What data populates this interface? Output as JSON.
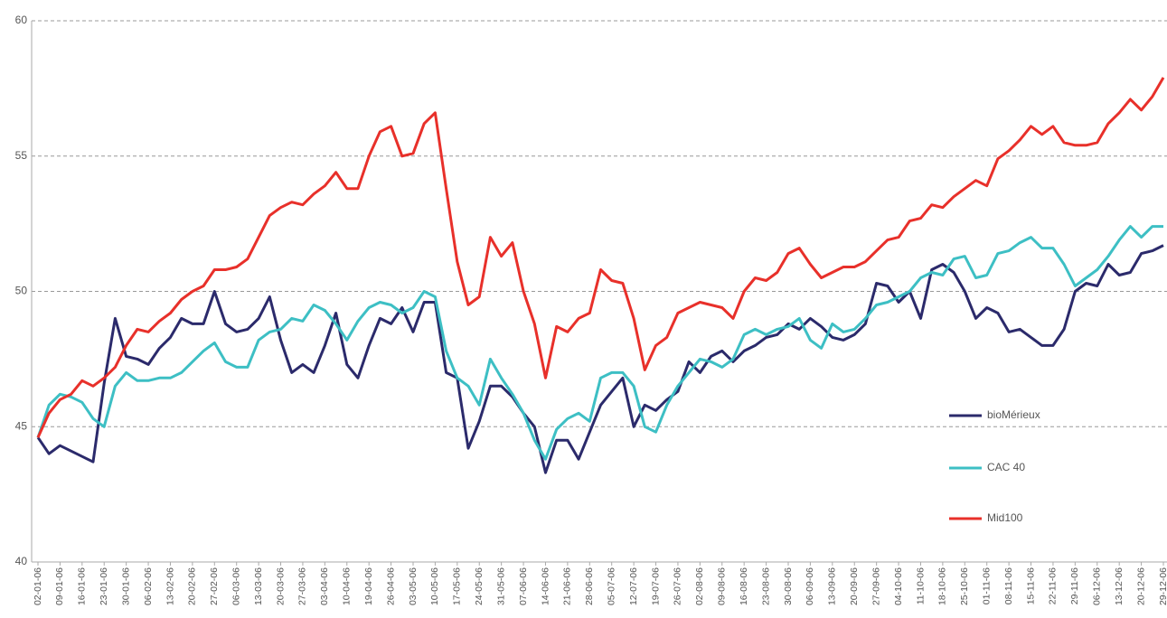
{
  "chart_data": {
    "type": "line",
    "categories": [
      "02-01-06",
      null,
      "09-01-06",
      null,
      "16-01-06",
      null,
      "23-01-06",
      null,
      "30-01-06",
      null,
      "06-02-06",
      null,
      "13-02-06",
      null,
      "20-02-06",
      null,
      "27-02-06",
      null,
      "06-03-06",
      null,
      "13-03-06",
      null,
      "20-03-06",
      null,
      "27-03-06",
      null,
      "03-04-06",
      null,
      "10-04-06",
      null,
      "19-04-06",
      null,
      "26-04-06",
      null,
      "03-05-06",
      null,
      "10-05-06",
      null,
      "17-05-06",
      null,
      "24-05-06",
      null,
      "31-05-06",
      null,
      "07-06-06",
      null,
      "14-06-06",
      null,
      "21-06-06",
      null,
      "28-06-06",
      null,
      "05-07-06",
      null,
      "12-07-06",
      null,
      "19-07-06",
      null,
      "26-07-06",
      null,
      "02-08-06",
      null,
      "09-08-06",
      null,
      "16-08-06",
      null,
      "23-08-06",
      null,
      "30-08-06",
      null,
      "06-09-06",
      null,
      "13-09-06",
      null,
      "20-09-06",
      null,
      "27-09-06",
      null,
      "04-10-06",
      null,
      "11-10-06",
      null,
      "18-10-06",
      null,
      "25-10-06",
      null,
      "01-11-06",
      null,
      "08-11-06",
      null,
      "15-11-06",
      null,
      "22-11-06",
      null,
      "29-11-06",
      null,
      "06-12-06",
      null,
      "13-12-06",
      null,
      "20-12-06",
      null,
      "29-12-06"
    ],
    "series": [
      {
        "name": "bioMérieux",
        "color": "#2b2a6b",
        "values": [
          44.6,
          44.0,
          44.3,
          44.1,
          43.9,
          43.7,
          46.6,
          49.0,
          47.6,
          47.5,
          47.3,
          47.9,
          48.3,
          49.0,
          48.8,
          48.8,
          50.0,
          48.8,
          48.5,
          48.6,
          49.0,
          49.8,
          48.2,
          47.0,
          47.3,
          47.0,
          48.0,
          49.2,
          47.3,
          46.8,
          48.0,
          49.0,
          48.8,
          49.4,
          48.5,
          49.6,
          49.6,
          47.0,
          46.8,
          44.2,
          45.2,
          46.5,
          46.5,
          46.1,
          45.5,
          45.0,
          43.3,
          44.5,
          44.5,
          43.8,
          44.8,
          45.8,
          46.3,
          46.8,
          45.0,
          45.8,
          45.6,
          46.0,
          46.3,
          47.4,
          47.0,
          47.6,
          47.8,
          47.4,
          47.8,
          48.0,
          48.3,
          48.4,
          48.8,
          48.6,
          49.0,
          48.7,
          48.3,
          48.2,
          48.4,
          48.8,
          50.3,
          50.2,
          49.6,
          50.0,
          49.0,
          50.8,
          51.0,
          50.7,
          50.0,
          49.0,
          49.4,
          49.2,
          48.5,
          48.6,
          48.3,
          48.0,
          48.0,
          48.6,
          50.0,
          50.3,
          50.2,
          51.0,
          50.6,
          50.7,
          51.4,
          51.5,
          51.7
        ]
      },
      {
        "name": "CAC 40",
        "color": "#3dbfc4",
        "values": [
          44.6,
          45.8,
          46.2,
          46.1,
          45.9,
          45.3,
          45.0,
          46.5,
          47.0,
          46.7,
          46.7,
          46.8,
          46.8,
          47.0,
          47.4,
          47.8,
          48.1,
          47.4,
          47.2,
          47.2,
          48.2,
          48.5,
          48.6,
          49.0,
          48.9,
          49.5,
          49.3,
          48.8,
          48.2,
          48.9,
          49.4,
          49.6,
          49.5,
          49.2,
          49.4,
          50.0,
          49.8,
          47.8,
          46.8,
          46.5,
          45.8,
          47.5,
          46.8,
          46.2,
          45.5,
          44.5,
          43.8,
          44.9,
          45.3,
          45.5,
          45.2,
          46.8,
          47.0,
          47.0,
          46.5,
          45.0,
          44.8,
          45.8,
          46.5,
          47.0,
          47.5,
          47.4,
          47.2,
          47.5,
          48.4,
          48.6,
          48.4,
          48.6,
          48.7,
          49.0,
          48.2,
          47.9,
          48.8,
          48.5,
          48.6,
          49.0,
          49.5,
          49.6,
          49.8,
          50.0,
          50.5,
          50.7,
          50.6,
          51.2,
          51.3,
          50.5,
          50.6,
          51.4,
          51.5,
          51.8,
          52.0,
          51.6,
          51.6,
          51.0,
          50.2,
          50.5,
          50.8,
          51.3,
          51.9,
          52.4,
          52.0,
          52.4,
          52.4
        ]
      },
      {
        "name": "Mid100",
        "color": "#e8302a",
        "values": [
          44.6,
          45.5,
          46.0,
          46.2,
          46.7,
          46.5,
          46.8,
          47.2,
          48.0,
          48.6,
          48.5,
          48.9,
          49.2,
          49.7,
          50.0,
          50.2,
          50.8,
          50.8,
          50.9,
          51.2,
          52.0,
          52.8,
          53.1,
          53.3,
          53.2,
          53.6,
          53.9,
          54.4,
          53.8,
          53.8,
          55.0,
          55.9,
          56.1,
          55.0,
          55.1,
          56.2,
          56.6,
          53.8,
          51.1,
          49.5,
          49.8,
          52.0,
          51.3,
          51.8,
          50.0,
          48.8,
          46.8,
          48.7,
          48.5,
          49.0,
          49.2,
          50.8,
          50.4,
          50.3,
          49.0,
          47.1,
          48.0,
          48.3,
          49.2,
          49.4,
          49.6,
          49.5,
          49.4,
          49.0,
          50.0,
          50.5,
          50.4,
          50.7,
          51.4,
          51.6,
          51.0,
          50.5,
          50.7,
          50.9,
          50.9,
          51.1,
          51.5,
          51.9,
          52.0,
          52.6,
          52.7,
          53.2,
          53.1,
          53.5,
          53.8,
          54.1,
          53.9,
          54.9,
          55.2,
          55.6,
          56.1,
          55.8,
          56.1,
          55.5,
          55.4,
          55.4,
          55.5,
          56.2,
          56.6,
          57.1,
          56.7,
          57.2,
          57.9
        ]
      }
    ],
    "ylim": [
      40,
      60
    ],
    "yticks": [
      40,
      45,
      50,
      55,
      60
    ],
    "grid": true,
    "legend": "right"
  }
}
